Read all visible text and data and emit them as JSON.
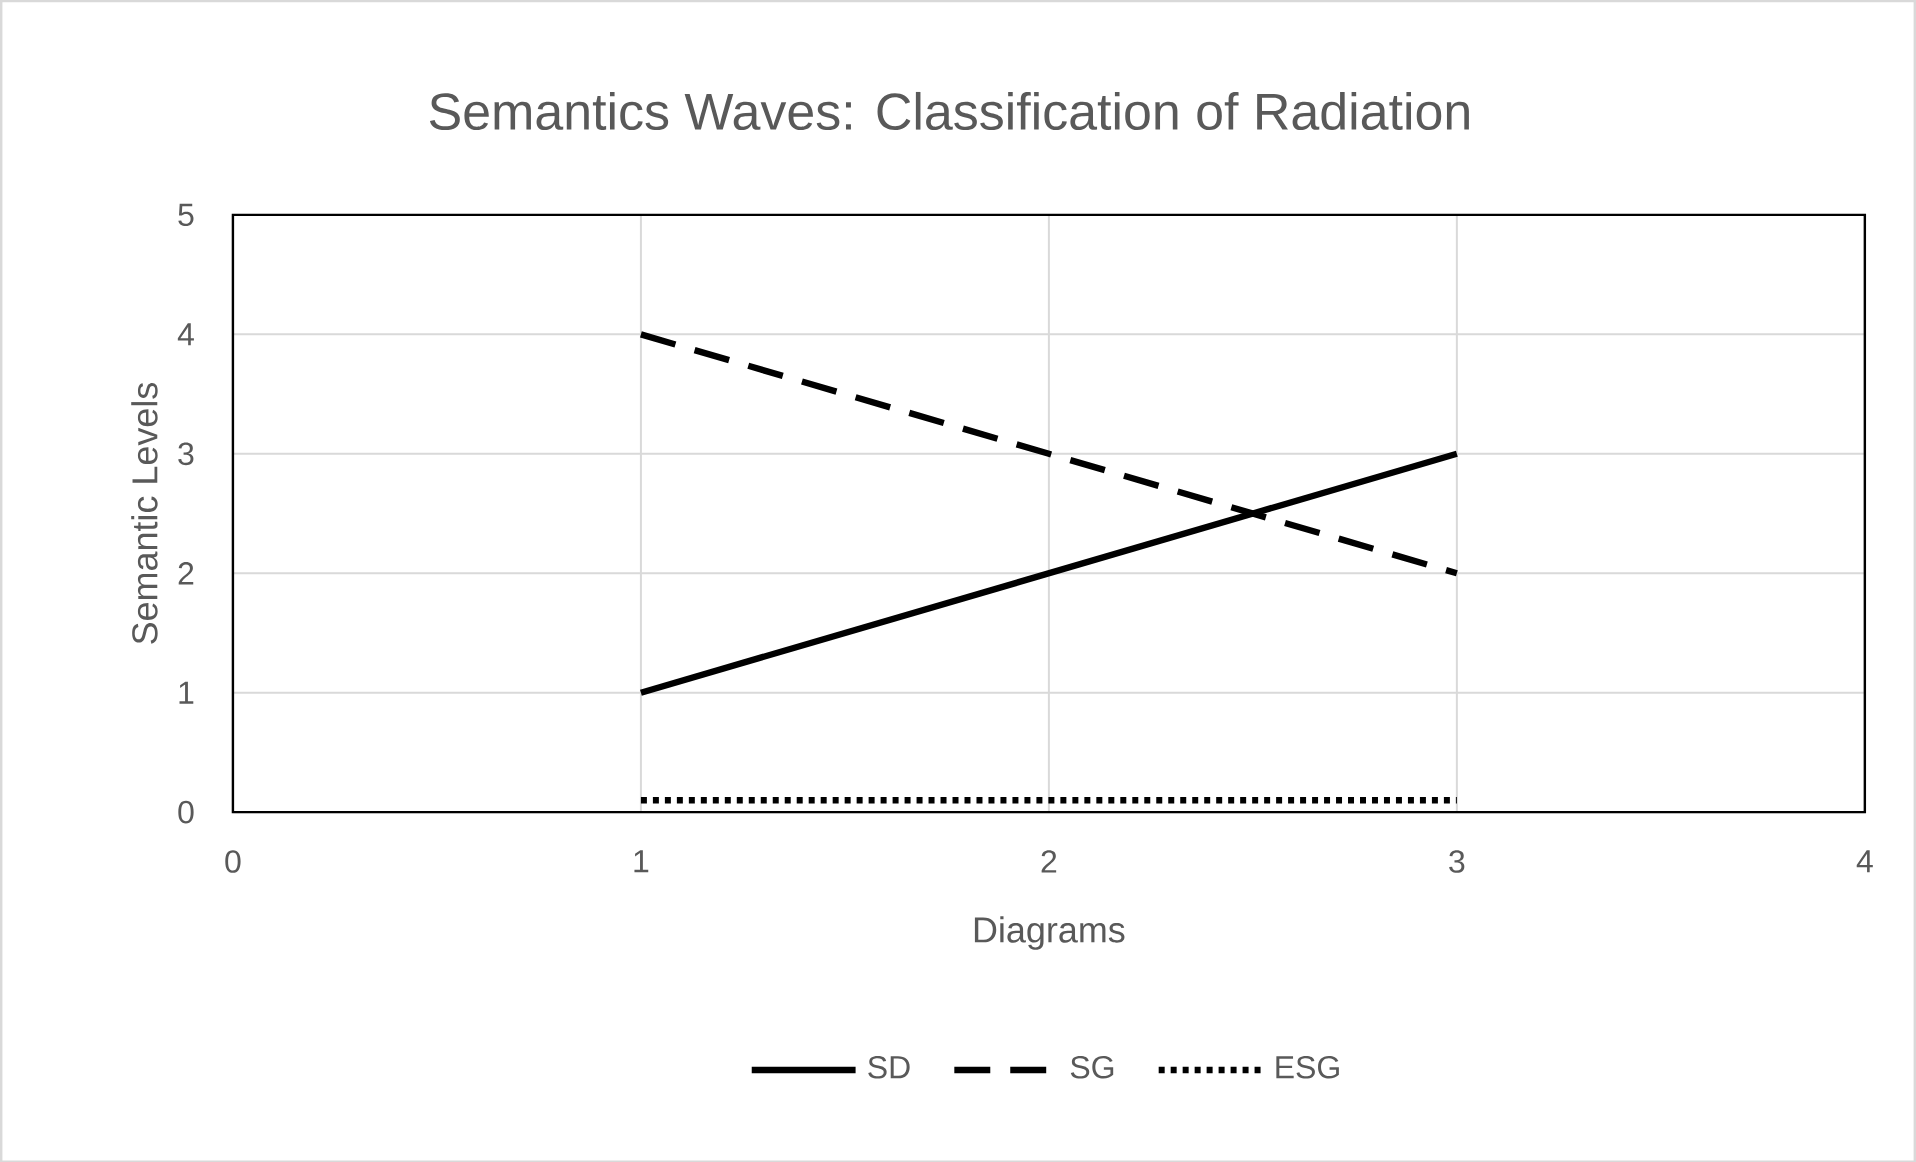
{
  "chart_data": {
    "type": "line",
    "title": "Semantics Waves: Classification of Radiation",
    "xlabel": "Diagrams",
    "ylabel": "Semantic Levels",
    "x": [
      1,
      2,
      3
    ],
    "series": [
      {
        "name": "SD",
        "color": "#000000",
        "line_style": "solid",
        "values": [
          1,
          2,
          3
        ]
      },
      {
        "name": "SG",
        "color": "#000000",
        "line_style": "dashed",
        "values": [
          4,
          3,
          2
        ]
      },
      {
        "name": "ESG",
        "color": "#000000",
        "line_style": "dotted",
        "values": [
          0.1,
          0.1,
          0.1
        ]
      }
    ],
    "xlim": [
      0,
      4
    ],
    "xticks": [
      0,
      1,
      2,
      3,
      4
    ],
    "ylim": [
      0,
      5
    ],
    "yticks": [
      0,
      1,
      2,
      3,
      4,
      5
    ],
    "grid": true,
    "legend": "bottom",
    "marker": "none"
  }
}
